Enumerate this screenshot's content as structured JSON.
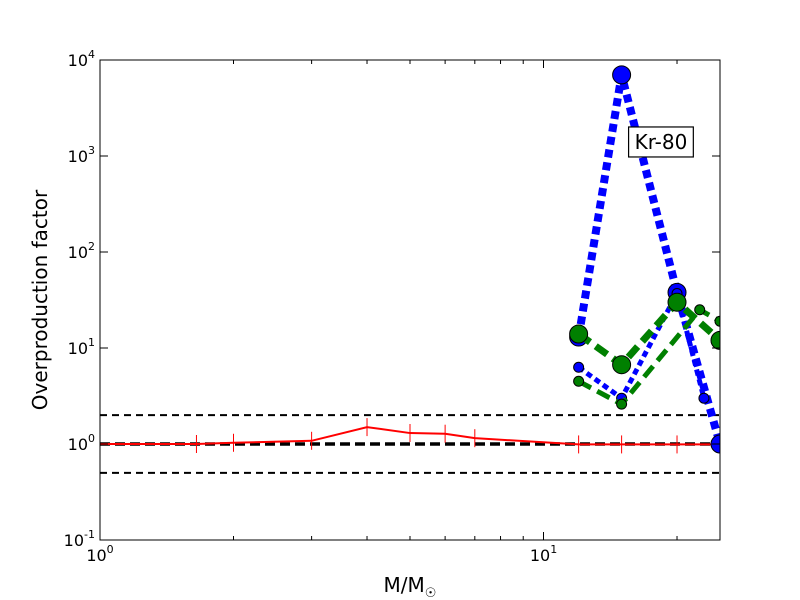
{
  "chart_data": {
    "type": "line",
    "title": "",
    "xlabel": "M/M",
    "xlabel_symbol": "☉",
    "ylabel": "Overproduction factor",
    "xscale": "log",
    "yscale": "log",
    "xlim": [
      1,
      25
    ],
    "ylim": [
      0.1,
      10000
    ],
    "x_ticks": [
      {
        "value": 1,
        "base": "10",
        "exp": "0"
      },
      {
        "value": 10,
        "base": "10",
        "exp": "1"
      }
    ],
    "y_ticks": [
      {
        "value": 0.1,
        "base": "10",
        "exp": "-1"
      },
      {
        "value": 1,
        "base": "10",
        "exp": "0"
      },
      {
        "value": 10,
        "base": "10",
        "exp": "1"
      },
      {
        "value": 100,
        "base": "10",
        "exp": "2"
      },
      {
        "value": 1000,
        "base": "10",
        "exp": "3"
      },
      {
        "value": 10000,
        "base": "10",
        "exp": "4"
      }
    ],
    "reference_lines": [
      {
        "y": 2.0,
        "style": "dashed",
        "color": "#000000",
        "weight": "thin"
      },
      {
        "y": 1.0,
        "style": "dashed",
        "color": "#000000",
        "weight": "thick"
      },
      {
        "y": 0.5,
        "style": "dashed",
        "color": "#000000",
        "weight": "thin"
      }
    ],
    "series": [
      {
        "color": "#ff0000",
        "style": "solid",
        "marker": "vertical-tick",
        "x": [
          1,
          1.65,
          2,
          3,
          4,
          5,
          6,
          7,
          12,
          15,
          20,
          25
        ],
        "y": [
          1.0,
          1.0,
          1.03,
          1.08,
          1.5,
          1.3,
          1.28,
          1.15,
          0.99,
          0.99,
          0.99,
          0.99
        ]
      },
      {
        "color": "#0000ff",
        "style": "dotted",
        "marker": "circle-large",
        "x": [
          12,
          15,
          20,
          25
        ],
        "y": [
          13,
          7000,
          38,
          1.0
        ]
      },
      {
        "color": "#0000ff",
        "style": "dotted",
        "marker": "circle-small",
        "x": [
          12,
          15,
          20,
          23
        ],
        "y": [
          6.3,
          3.0,
          37,
          3.0
        ]
      },
      {
        "color": "#008000",
        "style": "dashed",
        "marker": "circle-large",
        "x": [
          12,
          15,
          20,
          25
        ],
        "y": [
          14,
          6.7,
          30,
          12
        ]
      },
      {
        "color": "#008000",
        "style": "dashed",
        "marker": "circle-small",
        "x": [
          12,
          15,
          22.5,
          25
        ],
        "y": [
          4.5,
          2.6,
          25,
          19
        ]
      }
    ],
    "annotation": {
      "text": "Kr-80",
      "x": 18.4,
      "y": 1400
    },
    "grid": false,
    "legend": "none"
  }
}
